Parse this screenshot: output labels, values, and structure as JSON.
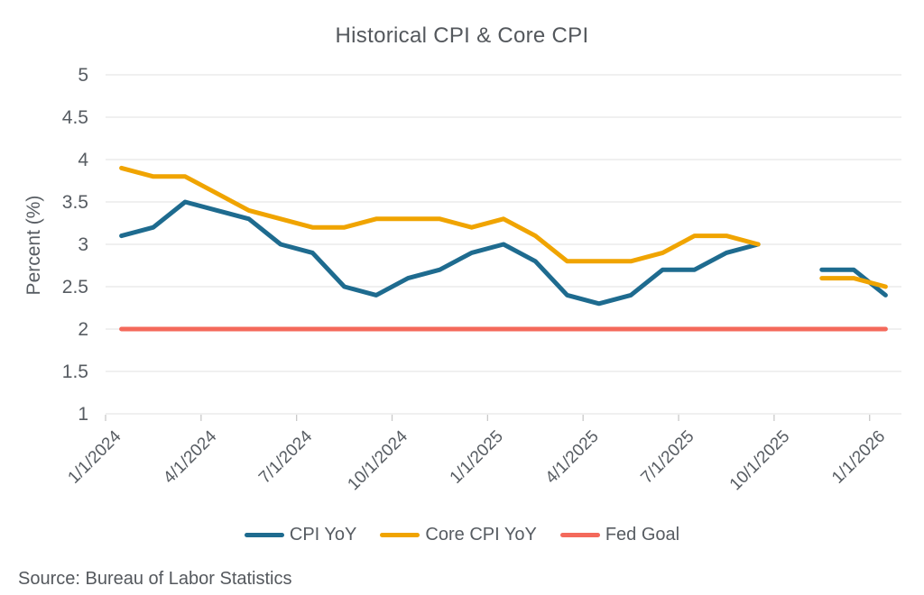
{
  "title": "Historical CPI & Core CPI",
  "source": "Source: Bureau of Labor Statistics",
  "colors": {
    "cpi_blue": "#1E6B8F",
    "core_orange": "#F0A400",
    "fed_red": "#F4695B",
    "gridline": "#E8E8E8",
    "axis_tick": "#C9C9C9",
    "label_text": "#575C62"
  },
  "chart_data": {
    "type": "line",
    "title": "Historical CPI & Core CPI",
    "xlabel": "",
    "ylabel": "Percent (%)",
    "ylim": [
      1,
      5
    ],
    "yticks": [
      5,
      4.5,
      4,
      3.5,
      3,
      2.5,
      2,
      1.5,
      1
    ],
    "grid": "horizontal",
    "legend_position": "bottom",
    "xtick_every": 3,
    "x": [
      "1/1/2024",
      "2/1/2024",
      "3/1/2024",
      "4/1/2024",
      "5/1/2024",
      "6/1/2024",
      "7/1/2024",
      "8/1/2024",
      "9/1/2024",
      "10/1/2024",
      "11/1/2024",
      "12/1/2024",
      "1/1/2025",
      "2/1/2025",
      "3/1/2025",
      "4/1/2025",
      "5/1/2025",
      "6/1/2025",
      "7/1/2025",
      "8/1/2025",
      "9/1/2025",
      "10/1/2025",
      "11/1/2025",
      "12/1/2025",
      "1/1/2026"
    ],
    "series": [
      {
        "name": "CPI YoY",
        "color": "#1E6B8F",
        "values": [
          3.1,
          3.2,
          3.5,
          3.4,
          3.3,
          3.0,
          2.9,
          2.5,
          2.4,
          2.6,
          2.7,
          2.9,
          3.0,
          2.8,
          2.4,
          2.3,
          2.4,
          2.7,
          2.7,
          2.9,
          3.0,
          null,
          2.7,
          2.7,
          2.4
        ]
      },
      {
        "name": "Core CPI YoY",
        "color": "#F0A400",
        "values": [
          3.9,
          3.8,
          3.8,
          3.6,
          3.4,
          3.3,
          3.2,
          3.2,
          3.3,
          3.3,
          3.3,
          3.2,
          3.3,
          3.1,
          2.8,
          2.8,
          2.8,
          2.9,
          3.1,
          3.1,
          3.0,
          null,
          2.6,
          2.6,
          2.5
        ]
      },
      {
        "name": "Fed Goal",
        "color": "#F4695B",
        "values": [
          2,
          2,
          2,
          2,
          2,
          2,
          2,
          2,
          2,
          2,
          2,
          2,
          2,
          2,
          2,
          2,
          2,
          2,
          2,
          2,
          2,
          2,
          2,
          2,
          2
        ]
      }
    ]
  }
}
